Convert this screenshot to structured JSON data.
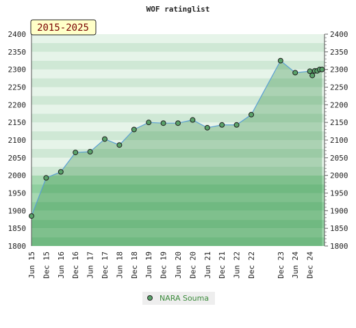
{
  "chart_data": {
    "type": "line",
    "title": "WOF ratinglist",
    "badge": "2015-2025",
    "ylim": [
      1800,
      2400
    ],
    "yticks": [
      1800,
      1850,
      1900,
      1950,
      2000,
      2050,
      2100,
      2150,
      2200,
      2250,
      2300,
      2350,
      2400
    ],
    "x_range": [
      "2015-06",
      "2025-06"
    ],
    "xticks": [
      "Jun 15",
      "Dec 15",
      "Jun 16",
      "Dec 16",
      "Jun 17",
      "Dec 17",
      "Jun 18",
      "Dec 18",
      "Jun 19",
      "Dec 19",
      "Jun 20",
      "Dec 20",
      "Jun 21",
      "Dec 21",
      "Jun 22",
      "Dec 22",
      "Dec 23",
      "Jun 24",
      "Dec 24"
    ],
    "xtick_dates": [
      "2015-06",
      "2015-12",
      "2016-06",
      "2016-12",
      "2017-06",
      "2017-12",
      "2018-06",
      "2018-12",
      "2019-06",
      "2019-12",
      "2020-06",
      "2020-12",
      "2021-06",
      "2021-12",
      "2022-06",
      "2022-12",
      "2023-12",
      "2024-06",
      "2024-12"
    ],
    "series": [
      {
        "name": "NARA Souma",
        "x": [
          "2015-06",
          "2015-12",
          "2016-06",
          "2016-12",
          "2017-06",
          "2017-12",
          "2018-06",
          "2018-12",
          "2019-06",
          "2019-12",
          "2020-06",
          "2020-12",
          "2021-06",
          "2021-12",
          "2022-06",
          "2022-12",
          "2023-12",
          "2024-06",
          "2024-12",
          "2025-01",
          "2025-02",
          "2025-03",
          "2025-04",
          "2025-05"
        ],
        "values": [
          1885,
          1993,
          2010,
          2065,
          2067,
          2103,
          2086,
          2130,
          2150,
          2148,
          2148,
          2157,
          2135,
          2143,
          2143,
          2172,
          2325,
          2291,
          2295,
          2283,
          2296,
          2296,
          2300,
          2300
        ]
      }
    ],
    "legend_position": "bottom-center",
    "colors": {
      "band_dark": "#8fcf9f",
      "band_light": "#a6d9b1",
      "upper_dark": "#cfe8d5",
      "upper_light": "#e6f4e9",
      "line": "#5a9fd4",
      "marker": "#5aa26a",
      "badge_bg": "#ffffc8"
    }
  }
}
